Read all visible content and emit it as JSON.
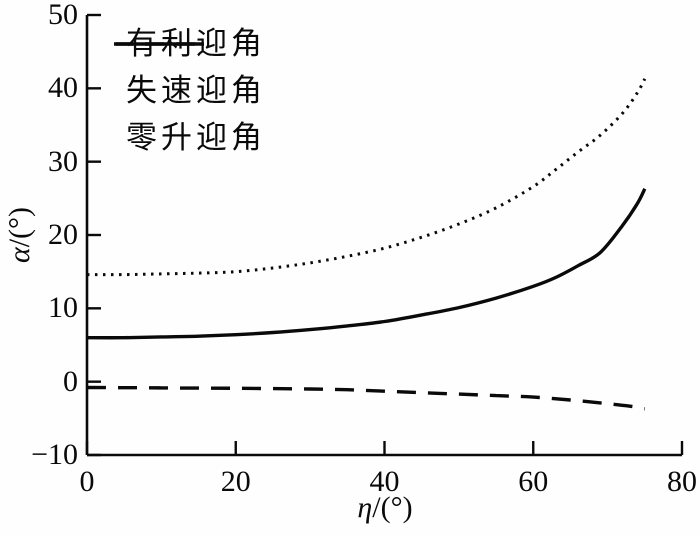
{
  "chart_data": {
    "type": "line",
    "title": "",
    "xlabel": "η/(°)",
    "ylabel": "α/(°)",
    "xlim": [
      0,
      80
    ],
    "ylim": [
      -10,
      50
    ],
    "xticks": [
      0,
      20,
      40,
      60,
      80
    ],
    "yticks": [
      -10,
      0,
      10,
      20,
      30,
      40,
      50
    ],
    "grid": false,
    "legend_position": "inside-top-left",
    "line_color": "#0a0a0a",
    "background": "#fefefe",
    "series": [
      {
        "name": "有利迎角",
        "style": "solid",
        "x": [
          0,
          5,
          10,
          15,
          20,
          25,
          30,
          35,
          40,
          45,
          50,
          55,
          60,
          63,
          66,
          69,
          72,
          74,
          75
        ],
        "y": [
          6.0,
          6.0,
          6.1,
          6.2,
          6.4,
          6.7,
          7.1,
          7.6,
          8.2,
          9.1,
          10.1,
          11.4,
          13.0,
          14.2,
          15.8,
          17.6,
          21.3,
          24.3,
          26.3
        ]
      },
      {
        "name": "失速迎角",
        "style": "dotted",
        "x": [
          0,
          5,
          10,
          15,
          20,
          25,
          30,
          35,
          40,
          45,
          50,
          55,
          60,
          63,
          66,
          69,
          72,
          74,
          75
        ],
        "y": [
          14.6,
          14.6,
          14.7,
          14.8,
          15.0,
          15.5,
          16.2,
          17.1,
          18.2,
          19.7,
          21.5,
          23.7,
          26.6,
          28.9,
          31.3,
          33.6,
          36.6,
          39.4,
          41.3
        ]
      },
      {
        "name": "零升迎角",
        "style": "dashed",
        "x": [
          0,
          5,
          10,
          15,
          20,
          25,
          30,
          35,
          40,
          45,
          50,
          55,
          60,
          65,
          70,
          73,
          75
        ],
        "y": [
          -0.8,
          -0.82,
          -0.85,
          -0.88,
          -0.9,
          -0.95,
          -1.0,
          -1.1,
          -1.3,
          -1.5,
          -1.7,
          -1.9,
          -2.1,
          -2.5,
          -3.0,
          -3.35,
          -3.7
        ]
      }
    ]
  },
  "axes": {
    "x_symbol": "η",
    "x_unit": "/(°)",
    "y_symbol": "α",
    "y_unit": "/(°)",
    "x_tick_labels": [
      "0",
      "20",
      "40",
      "60",
      "80"
    ],
    "y_tick_labels": [
      "−10",
      "0",
      "10",
      "20",
      "30",
      "40",
      "50"
    ]
  },
  "legend": {
    "items": [
      {
        "label": "有利迎角",
        "style": "solid"
      },
      {
        "label": "失速迎角",
        "style": "dotted"
      },
      {
        "label": "零升迎角",
        "style": "dashed"
      }
    ]
  }
}
